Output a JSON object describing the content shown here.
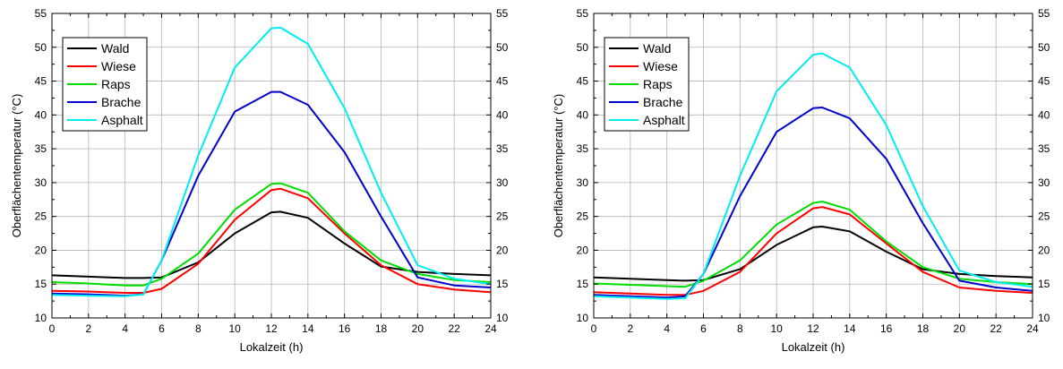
{
  "chart_data": [
    {
      "type": "line",
      "title": "",
      "xlabel": "Lokalzeit (h)",
      "ylabel": "Oberflächentemperatur (°C)",
      "xlim": [
        0,
        24
      ],
      "ylim": [
        10,
        55
      ],
      "x_ticks": [
        0,
        2,
        4,
        6,
        8,
        10,
        12,
        14,
        16,
        18,
        20,
        22,
        24
      ],
      "y_ticks": [
        10,
        15,
        20,
        25,
        30,
        35,
        40,
        45,
        50,
        55
      ],
      "grid": true,
      "legend": "top-left",
      "x": [
        0,
        2,
        4,
        5,
        6,
        8,
        10,
        12,
        12.5,
        14,
        16,
        18,
        20,
        22,
        24
      ],
      "series": [
        {
          "name": "Wald",
          "color": "#000000",
          "values": [
            16.3,
            16.1,
            15.9,
            15.9,
            16.0,
            18.2,
            22.5,
            25.6,
            25.7,
            24.8,
            21.0,
            17.6,
            16.8,
            16.5,
            16.3
          ]
        },
        {
          "name": "Wiese",
          "color": "#ff0000",
          "values": [
            14.0,
            13.9,
            13.7,
            13.7,
            14.3,
            18.0,
            24.5,
            28.9,
            29.1,
            27.7,
            22.5,
            17.8,
            15.0,
            14.2,
            13.8
          ]
        },
        {
          "name": "Raps",
          "color": "#00dd00",
          "values": [
            15.3,
            15.1,
            14.8,
            14.8,
            15.8,
            19.5,
            26.0,
            29.8,
            29.9,
            28.5,
            22.8,
            18.5,
            16.5,
            15.6,
            15.3
          ]
        },
        {
          "name": "Brache",
          "color": "#0000cc",
          "values": [
            13.6,
            13.5,
            13.3,
            13.5,
            18.5,
            31.0,
            40.5,
            43.4,
            43.4,
            41.5,
            34.5,
            25.0,
            16.0,
            14.8,
            14.5
          ]
        },
        {
          "name": "Asphalt",
          "color": "#00eeee",
          "values": [
            13.4,
            13.3,
            13.2,
            13.5,
            18.5,
            34.0,
            47.0,
            52.8,
            52.9,
            50.5,
            41.0,
            28.5,
            17.8,
            15.8,
            15.0
          ]
        }
      ]
    },
    {
      "type": "line",
      "title": "",
      "xlabel": "Lokalzeit (h)",
      "ylabel": "Oberflächentemperatur (°C)",
      "xlim": [
        0,
        24
      ],
      "ylim": [
        10,
        55
      ],
      "x_ticks": [
        0,
        2,
        4,
        6,
        8,
        10,
        12,
        14,
        16,
        18,
        20,
        22,
        24
      ],
      "y_ticks": [
        10,
        15,
        20,
        25,
        30,
        35,
        40,
        45,
        50,
        55
      ],
      "grid": true,
      "legend": "top-left",
      "x": [
        0,
        2,
        4,
        5,
        6,
        8,
        10,
        12,
        12.5,
        14,
        16,
        18,
        20,
        22,
        24
      ],
      "series": [
        {
          "name": "Wald",
          "color": "#000000",
          "values": [
            16.0,
            15.8,
            15.6,
            15.5,
            15.6,
            17.2,
            20.8,
            23.4,
            23.5,
            22.8,
            19.8,
            17.2,
            16.5,
            16.2,
            16.0
          ]
        },
        {
          "name": "Wiese",
          "color": "#ff0000",
          "values": [
            13.8,
            13.6,
            13.4,
            13.4,
            14.0,
            16.8,
            22.5,
            26.2,
            26.4,
            25.3,
            21.0,
            16.8,
            14.5,
            14.0,
            13.7
          ]
        },
        {
          "name": "Raps",
          "color": "#00dd00",
          "values": [
            15.1,
            14.9,
            14.7,
            14.6,
            15.5,
            18.5,
            23.8,
            27.0,
            27.2,
            26.0,
            21.3,
            17.5,
            15.8,
            15.3,
            15.0
          ]
        },
        {
          "name": "Brache",
          "color": "#0000cc",
          "values": [
            13.4,
            13.2,
            13.0,
            13.2,
            16.5,
            28.0,
            37.5,
            41.0,
            41.1,
            39.5,
            33.5,
            24.0,
            15.5,
            14.5,
            14.0
          ]
        },
        {
          "name": "Asphalt",
          "color": "#00eeee",
          "values": [
            13.2,
            13.0,
            12.8,
            12.9,
            16.5,
            31.0,
            43.5,
            48.9,
            49.1,
            47.0,
            38.5,
            26.5,
            17.0,
            15.3,
            14.6
          ]
        }
      ]
    }
  ]
}
